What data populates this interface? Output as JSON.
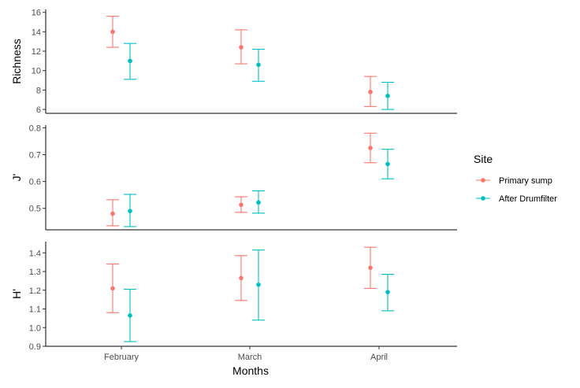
{
  "chart_data": {
    "type": "scatter",
    "categories": [
      "February",
      "March",
      "April"
    ],
    "xlabel": "Months",
    "legend": {
      "title": "Site",
      "position": "right"
    },
    "series_colors": {
      "Primary sump": "#F8766D",
      "After Drumfilter": "#00BFC4"
    },
    "series_names": [
      "Primary sump",
      "After Drumfilter"
    ],
    "panels": [
      {
        "ylabel": "Richness",
        "ylim": [
          5.6,
          16.3
        ],
        "yticks": [
          6,
          8,
          10,
          12,
          14,
          16
        ],
        "tick_labels": [
          "6",
          "8",
          "10",
          "12",
          "14",
          "16"
        ],
        "series": [
          {
            "name": "Primary sump",
            "values": [
              14.0,
              12.4,
              7.8
            ],
            "lower": [
              12.4,
              10.7,
              6.3
            ],
            "upper": [
              15.6,
              14.2,
              9.4
            ]
          },
          {
            "name": "After Drumfilter",
            "values": [
              11.0,
              10.6,
              7.4
            ],
            "lower": [
              9.1,
              8.9,
              6.0
            ],
            "upper": [
              12.8,
              12.2,
              8.8
            ]
          }
        ]
      },
      {
        "ylabel": "J'",
        "ylim": [
          0.42,
          0.81
        ],
        "yticks": [
          0.5,
          0.6,
          0.7,
          0.8
        ],
        "tick_labels": [
          "0.5",
          "0.6",
          "0.7",
          "0.8"
        ],
        "series": [
          {
            "name": "Primary sump",
            "values": [
              0.48,
              0.513,
              0.725
            ],
            "lower": [
              0.435,
              0.485,
              0.67
            ],
            "upper": [
              0.532,
              0.543,
              0.78
            ]
          },
          {
            "name": "After Drumfilter",
            "values": [
              0.49,
              0.522,
              0.665
            ],
            "lower": [
              0.432,
              0.482,
              0.61
            ],
            "upper": [
              0.552,
              0.565,
              0.72
            ]
          }
        ]
      },
      {
        "ylabel": "H'",
        "ylim": [
          0.9,
          1.46
        ],
        "yticks": [
          0.9,
          1.0,
          1.1,
          1.2,
          1.3,
          1.4
        ],
        "tick_labels": [
          "0.9",
          "1.0",
          "1.1",
          "1.2",
          "1.3",
          "1.4"
        ],
        "series": [
          {
            "name": "Primary sump",
            "values": [
              1.21,
              1.265,
              1.32
            ],
            "lower": [
              1.08,
              1.145,
              1.21
            ],
            "upper": [
              1.34,
              1.385,
              1.43
            ]
          },
          {
            "name": "After Drumfilter",
            "values": [
              1.065,
              1.23,
              1.19
            ],
            "lower": [
              0.925,
              1.04,
              1.09
            ],
            "upper": [
              1.205,
              1.415,
              1.285
            ]
          }
        ]
      }
    ]
  }
}
